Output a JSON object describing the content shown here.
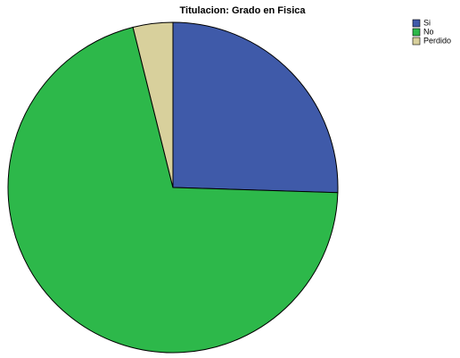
{
  "chart_data": {
    "type": "pie",
    "title": "Titulacion: Grado en Fisica",
    "categories": [
      "Si",
      "No",
      "Perdido"
    ],
    "values": [
      25.5,
      70.6,
      3.9
    ],
    "colors": [
      "#3f5aa9",
      "#2db84a",
      "#d8d09c"
    ],
    "legend": "top-right"
  }
}
